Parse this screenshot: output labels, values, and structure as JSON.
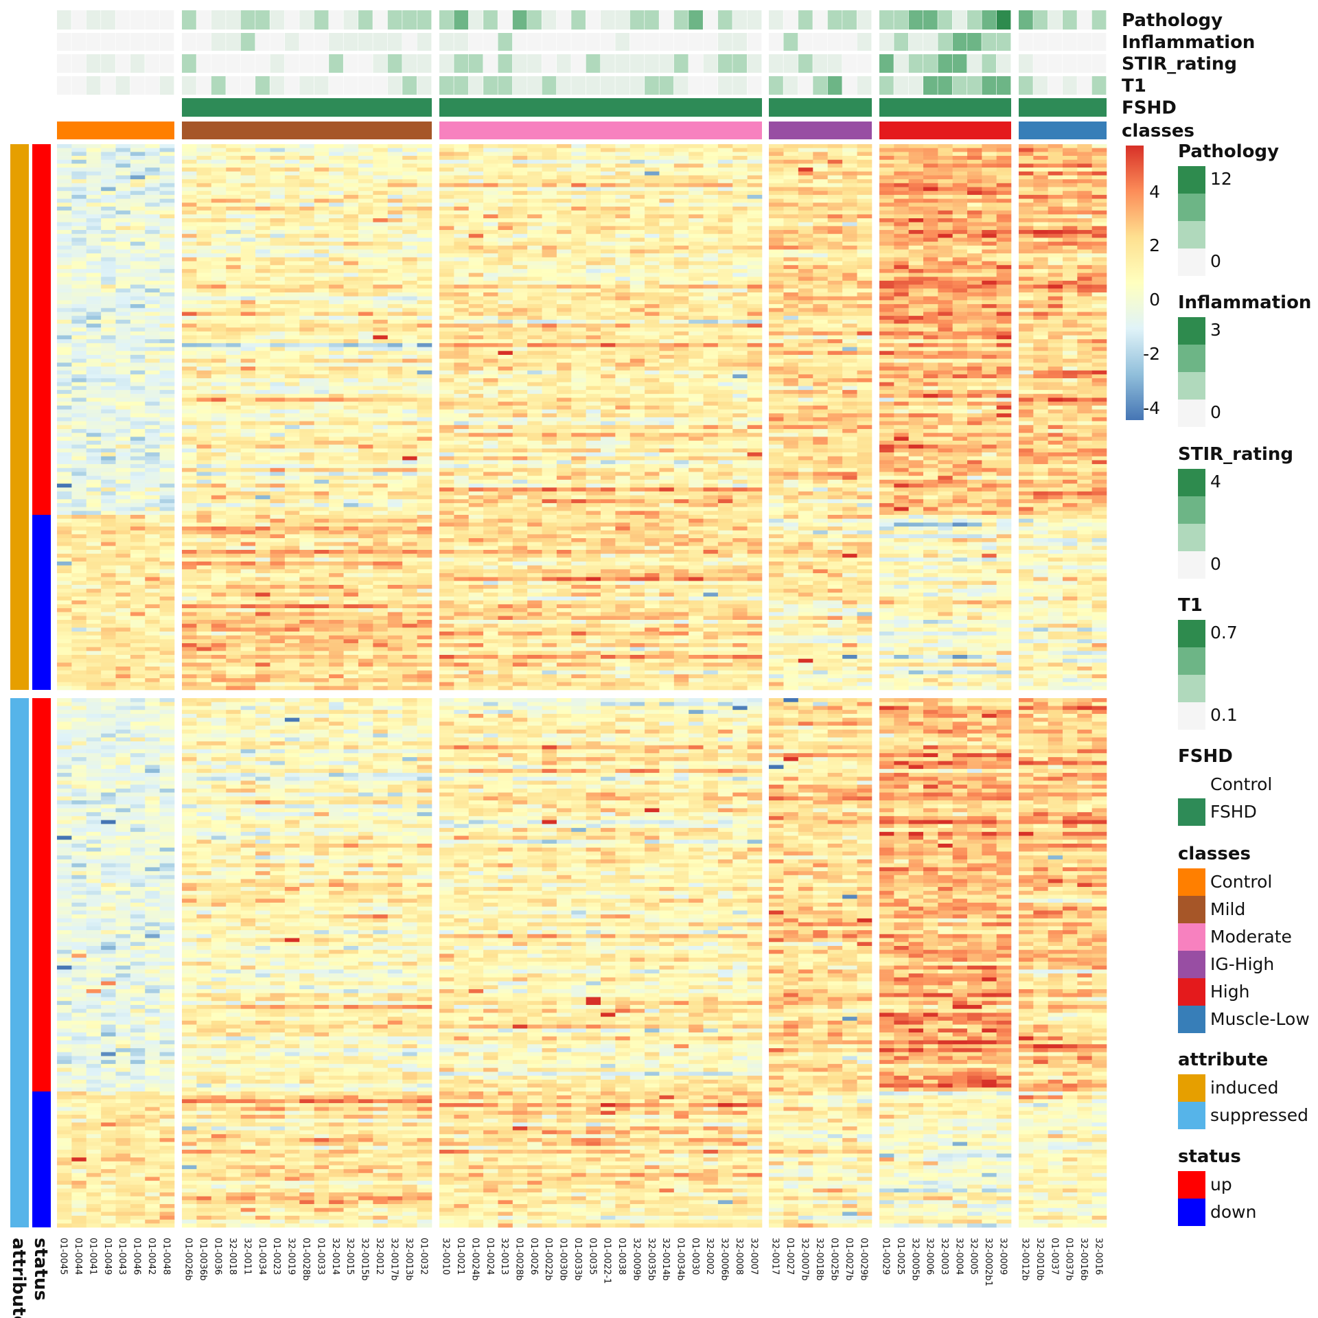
{
  "chart_data": {
    "type": "heatmap",
    "color_scale": {
      "min": -4,
      "max": 4,
      "ticks": [
        "4",
        "2",
        "0",
        "-2",
        "-4"
      ],
      "stops": [
        "#4575B4",
        "#91BFDB",
        "#E0F3F8",
        "#FFFFBF",
        "#FEE090",
        "#FC8D59",
        "#D73027"
      ]
    },
    "column_groups": [
      {
        "class": "Control",
        "color": "#FF7F00",
        "samples": [
          "01-0045",
          "01-0044",
          "01-0041",
          "01-0049",
          "01-0043",
          "01-0046",
          "01-0042",
          "01-0048"
        ]
      },
      {
        "class": "Mild",
        "color": "#A65628",
        "samples": [
          "01-0026b",
          "01-0036b",
          "01-0036",
          "32-0018",
          "32-0011",
          "01-0034",
          "01-0023",
          "32-0019",
          "01-0028b",
          "01-0033",
          "32-0014",
          "32-0015",
          "32-0015b",
          "32-0012",
          "32-0017b",
          "32-0013b",
          "01-0032"
        ]
      },
      {
        "class": "Moderate",
        "color": "#F781BF",
        "samples": [
          "32-0010",
          "01-0021",
          "01-0024b",
          "01-0024",
          "32-0013",
          "01-0028b",
          "01-0026",
          "01-0022b",
          "01-0030b",
          "01-0033b",
          "01-0035",
          "01-0022-1",
          "01-0038",
          "32-0009b",
          "32-0035b",
          "32-0014b",
          "01-0034b",
          "01-0030",
          "32-0002",
          "32-0006b",
          "32-0008",
          "32-0007"
        ]
      },
      {
        "class": "IG-High",
        "color": "#984EA3",
        "samples": [
          "32-0017",
          "01-0027",
          "32-0007b",
          "32-0018b",
          "01-0025b",
          "01-0027b",
          "01-0029b"
        ]
      },
      {
        "class": "High",
        "color": "#E41A1C",
        "samples": [
          "01-0029",
          "01-0025",
          "32-0005b",
          "32-0006",
          "32-0003",
          "32-0004",
          "32-0005",
          "32-0002b1",
          "32-0009"
        ]
      },
      {
        "class": "Muscle-Low",
        "color": "#377EB8",
        "samples": [
          "32-0012b",
          "32-0010b",
          "01-0037",
          "01-0037b",
          "32-0016b",
          "32-0016"
        ]
      }
    ],
    "top_annotations": [
      "Pathology",
      "Inflammation",
      "STIR_rating",
      "T1",
      "FSHD",
      "classes"
    ],
    "row_groups": [
      {
        "attribute": "induced",
        "status": "up"
      },
      {
        "attribute": "induced",
        "status": "down"
      },
      {
        "attribute": "suppressed",
        "status": "up"
      },
      {
        "attribute": "suppressed",
        "status": "down"
      }
    ],
    "row_annotation_labels": [
      "status",
      "attribute"
    ],
    "legends": [
      {
        "title": "Pathology",
        "type": "continuous",
        "labels": [
          "12",
          "0"
        ],
        "colors": [
          "#2E8B4E",
          "#6DB586",
          "#B0D9BC",
          "#F5F5F5"
        ]
      },
      {
        "title": "Inflammation",
        "type": "continuous",
        "labels": [
          "3",
          "0"
        ],
        "colors": [
          "#2E8B4E",
          "#6DB586",
          "#B0D9BC",
          "#F5F5F5"
        ]
      },
      {
        "title": "STIR_rating",
        "type": "continuous",
        "labels": [
          "4",
          "0"
        ],
        "colors": [
          "#2E8B4E",
          "#6DB586",
          "#B0D9BC",
          "#F5F5F5"
        ]
      },
      {
        "title": "T1",
        "type": "continuous",
        "labels": [
          "0.7",
          "0.1"
        ],
        "colors": [
          "#2E8B4E",
          "#6DB586",
          "#B0D9BC",
          "#F5F5F5"
        ]
      },
      {
        "title": "FSHD",
        "type": "discrete",
        "items": [
          {
            "label": "Control",
            "color": "#FFFFFF"
          },
          {
            "label": "FSHD",
            "color": "#2E8B57"
          }
        ]
      },
      {
        "title": "classes",
        "type": "discrete",
        "items": [
          {
            "label": "Control",
            "color": "#FF7F00"
          },
          {
            "label": "Mild",
            "color": "#A65628"
          },
          {
            "label": "Moderate",
            "color": "#F781BF"
          },
          {
            "label": "IG-High",
            "color": "#984EA3"
          },
          {
            "label": "High",
            "color": "#E41A1C"
          },
          {
            "label": "Muscle-Low",
            "color": "#377EB8"
          }
        ]
      },
      {
        "title": "attribute",
        "type": "discrete",
        "items": [
          {
            "label": "induced",
            "color": "#E69F00"
          },
          {
            "label": "suppressed",
            "color": "#56B4E9"
          }
        ]
      },
      {
        "title": "status",
        "type": "discrete",
        "items": [
          {
            "label": "up",
            "color": "#FF0000"
          },
          {
            "label": "down",
            "color": "#0000FF"
          }
        ]
      }
    ]
  }
}
